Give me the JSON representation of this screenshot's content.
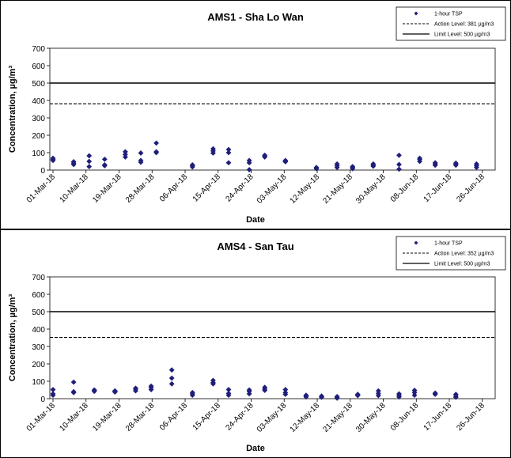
{
  "chart_data": [
    {
      "type": "scatter",
      "title": "AMS1 - Sha Lo Wan",
      "xlabel": "Date",
      "ylabel": "Concentration, µg/m³",
      "ylim": [
        0,
        700
      ],
      "yticks": [
        0,
        100,
        200,
        300,
        400,
        500,
        600,
        700
      ],
      "xticks": [
        "01-Mar-18",
        "10-Mar-18",
        "19-Mar-18",
        "28-Mar-18",
        "06-Apr-18",
        "15-Apr-18",
        "24-Apr-18",
        "03-May-18",
        "12-May-18",
        "21-May-18",
        "30-May-18",
        "08-Jun-18",
        "17-Jun-18",
        "26-Jun-18"
      ],
      "legend": [
        "1-hour TSP",
        "Action Level: 381 µg/m3",
        "Limit Level: 500 µg/m3"
      ],
      "legend_position": "top-right",
      "action_level": 381,
      "limit_level": 500,
      "series": [
        {
          "name": "1-hour TSP",
          "points": [
            [
              0,
              55
            ],
            [
              0,
              62
            ],
            [
              0,
              68
            ],
            [
              4,
              32
            ],
            [
              4,
              40
            ],
            [
              4,
              48
            ],
            [
              7,
              20
            ],
            [
              7,
              50
            ],
            [
              7,
              82
            ],
            [
              10,
              25
            ],
            [
              10,
              30
            ],
            [
              10,
              62
            ],
            [
              14,
              75
            ],
            [
              14,
              90
            ],
            [
              14,
              105
            ],
            [
              17,
              45
            ],
            [
              17,
              55
            ],
            [
              17,
              98
            ],
            [
              20,
              100
            ],
            [
              20,
              105
            ],
            [
              20,
              155
            ],
            [
              27,
              18
            ],
            [
              27,
              25
            ],
            [
              27,
              30
            ],
            [
              31,
              98
            ],
            [
              31,
              110
            ],
            [
              31,
              122
            ],
            [
              34,
              42
            ],
            [
              34,
              100
            ],
            [
              34,
              118
            ],
            [
              38,
              2
            ],
            [
              38,
              42
            ],
            [
              38,
              55
            ],
            [
              41,
              75
            ],
            [
              41,
              82
            ],
            [
              41,
              85
            ],
            [
              45,
              48
            ],
            [
              45,
              52
            ],
            [
              45,
              55
            ],
            [
              51,
              8
            ],
            [
              51,
              12
            ],
            [
              51,
              15
            ],
            [
              55,
              15
            ],
            [
              55,
              25
            ],
            [
              55,
              35
            ],
            [
              58,
              8
            ],
            [
              58,
              15
            ],
            [
              58,
              20
            ],
            [
              62,
              22
            ],
            [
              62,
              28
            ],
            [
              62,
              35
            ],
            [
              67,
              5
            ],
            [
              67,
              32
            ],
            [
              67,
              85
            ],
            [
              71,
              50
            ],
            [
              71,
              62
            ],
            [
              71,
              68
            ],
            [
              74,
              28
            ],
            [
              74,
              35
            ],
            [
              74,
              42
            ],
            [
              78,
              28
            ],
            [
              78,
              35
            ],
            [
              78,
              40
            ],
            [
              82,
              15
            ],
            [
              82,
              25
            ],
            [
              82,
              35
            ]
          ]
        }
      ]
    },
    {
      "type": "scatter",
      "title": "AMS4 - San Tau",
      "xlabel": "Date",
      "ylabel": "Concentration, µg/m³",
      "ylim": [
        0,
        700
      ],
      "yticks": [
        0,
        100,
        200,
        300,
        400,
        500,
        600,
        700
      ],
      "xticks": [
        "01-Mar-18",
        "10-Mar-18",
        "19-Mar-18",
        "28-Mar-18",
        "06-Apr-18",
        "15-Apr-18",
        "24-Apr-18",
        "03-May-18",
        "12-May-18",
        "21-May-18",
        "30-May-18",
        "08-Jun-18",
        "17-Jun-18",
        "26-Jun-18"
      ],
      "legend": [
        "1-hour TSP",
        "Action Level: 352 µg/m3",
        "Limit Level: 500 µg/m3"
      ],
      "legend_position": "top-right",
      "action_level": 352,
      "limit_level": 500,
      "series": [
        {
          "name": "1-hour TSP",
          "points": [
            [
              0,
              20
            ],
            [
              0,
              28
            ],
            [
              0,
              52
            ],
            [
              4,
              35
            ],
            [
              4,
              40
            ],
            [
              4,
              95
            ],
            [
              8,
              42
            ],
            [
              8,
              48
            ],
            [
              8,
              50
            ],
            [
              12,
              38
            ],
            [
              12,
              42
            ],
            [
              12,
              45
            ],
            [
              16,
              45
            ],
            [
              16,
              55
            ],
            [
              16,
              60
            ],
            [
              19,
              52
            ],
            [
              19,
              65
            ],
            [
              19,
              72
            ],
            [
              23,
              85
            ],
            [
              23,
              118
            ],
            [
              23,
              165
            ],
            [
              27,
              20
            ],
            [
              27,
              28
            ],
            [
              27,
              35
            ],
            [
              31,
              85
            ],
            [
              31,
              92
            ],
            [
              31,
              105
            ],
            [
              34,
              20
            ],
            [
              34,
              30
            ],
            [
              34,
              52
            ],
            [
              38,
              28
            ],
            [
              38,
              42
            ],
            [
              38,
              50
            ],
            [
              41,
              48
            ],
            [
              41,
              55
            ],
            [
              41,
              65
            ],
            [
              45,
              25
            ],
            [
              45,
              35
            ],
            [
              45,
              52
            ],
            [
              49,
              10
            ],
            [
              49,
              15
            ],
            [
              49,
              20
            ],
            [
              52,
              8
            ],
            [
              52,
              12
            ],
            [
              52,
              15
            ],
            [
              55,
              3
            ],
            [
              55,
              8
            ],
            [
              55,
              12
            ],
            [
              59,
              18
            ],
            [
              59,
              22
            ],
            [
              59,
              25
            ],
            [
              63,
              18
            ],
            [
              63,
              30
            ],
            [
              63,
              45
            ],
            [
              67,
              10
            ],
            [
              67,
              20
            ],
            [
              67,
              28
            ],
            [
              70,
              20
            ],
            [
              70,
              35
            ],
            [
              70,
              48
            ],
            [
              74,
              25
            ],
            [
              74,
              28
            ],
            [
              74,
              32
            ],
            [
              78,
              8
            ],
            [
              78,
              15
            ],
            [
              78,
              25
            ]
          ]
        }
      ]
    }
  ]
}
